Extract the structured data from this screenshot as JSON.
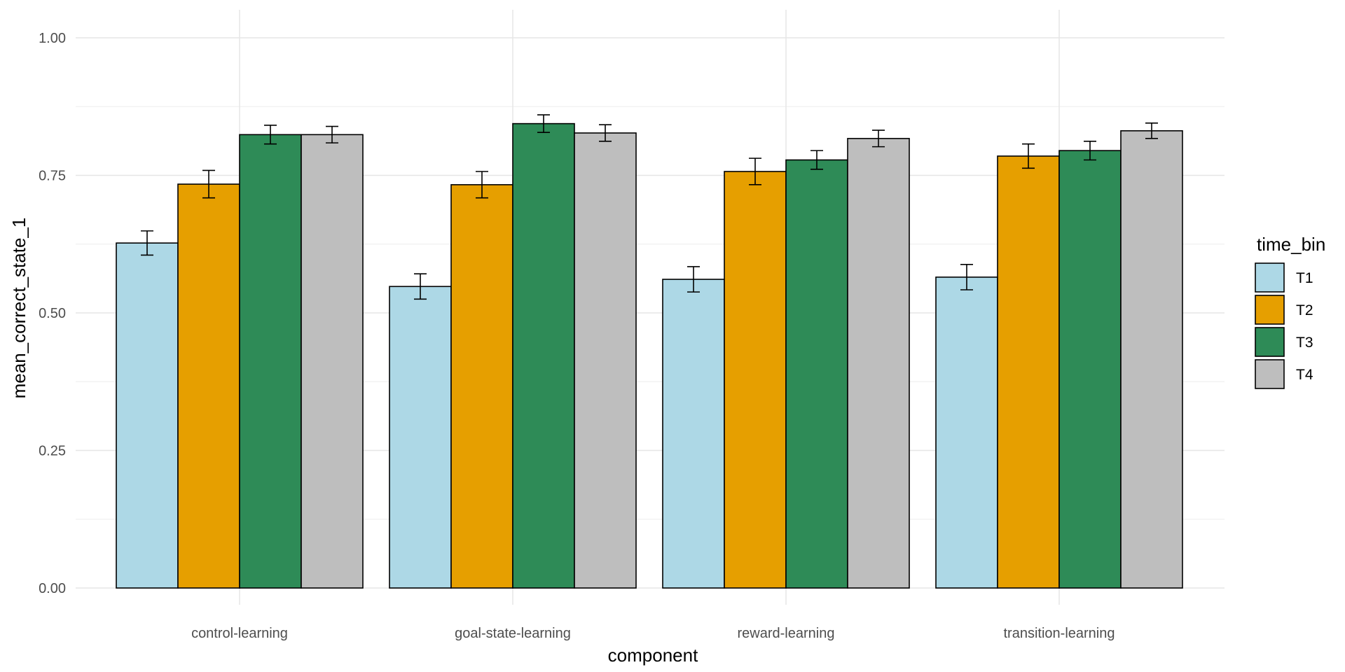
{
  "chart_data": {
    "type": "bar",
    "xlabel": "component",
    "ylabel": "mean_correct_state_1",
    "ylim": [
      0,
      1.0
    ],
    "yticks": [
      0.0,
      0.25,
      0.5,
      0.75,
      1.0
    ],
    "ytick_labels": [
      "0.00",
      "0.25",
      "0.50",
      "0.75",
      "1.00"
    ],
    "categories": [
      "control-learning",
      "goal-state-learning",
      "reward-learning",
      "transition-learning"
    ],
    "grid": true,
    "legend": {
      "title": "time_bin",
      "position": "right"
    },
    "series": [
      {
        "name": "T1",
        "color": "#ADD8E6",
        "values": [
          0.627,
          0.548,
          0.561,
          0.565
        ],
        "error": [
          0.022,
          0.023,
          0.023,
          0.023
        ]
      },
      {
        "name": "T2",
        "color": "#E69F00",
        "values": [
          0.734,
          0.733,
          0.757,
          0.785
        ],
        "error": [
          0.025,
          0.024,
          0.024,
          0.022
        ]
      },
      {
        "name": "T3",
        "color": "#2E8B57",
        "values": [
          0.824,
          0.844,
          0.778,
          0.795
        ],
        "error": [
          0.017,
          0.016,
          0.017,
          0.017
        ]
      },
      {
        "name": "T4",
        "color": "#BEBEBE",
        "values": [
          0.824,
          0.827,
          0.817,
          0.831
        ],
        "error": [
          0.015,
          0.015,
          0.015,
          0.014
        ]
      }
    ]
  }
}
